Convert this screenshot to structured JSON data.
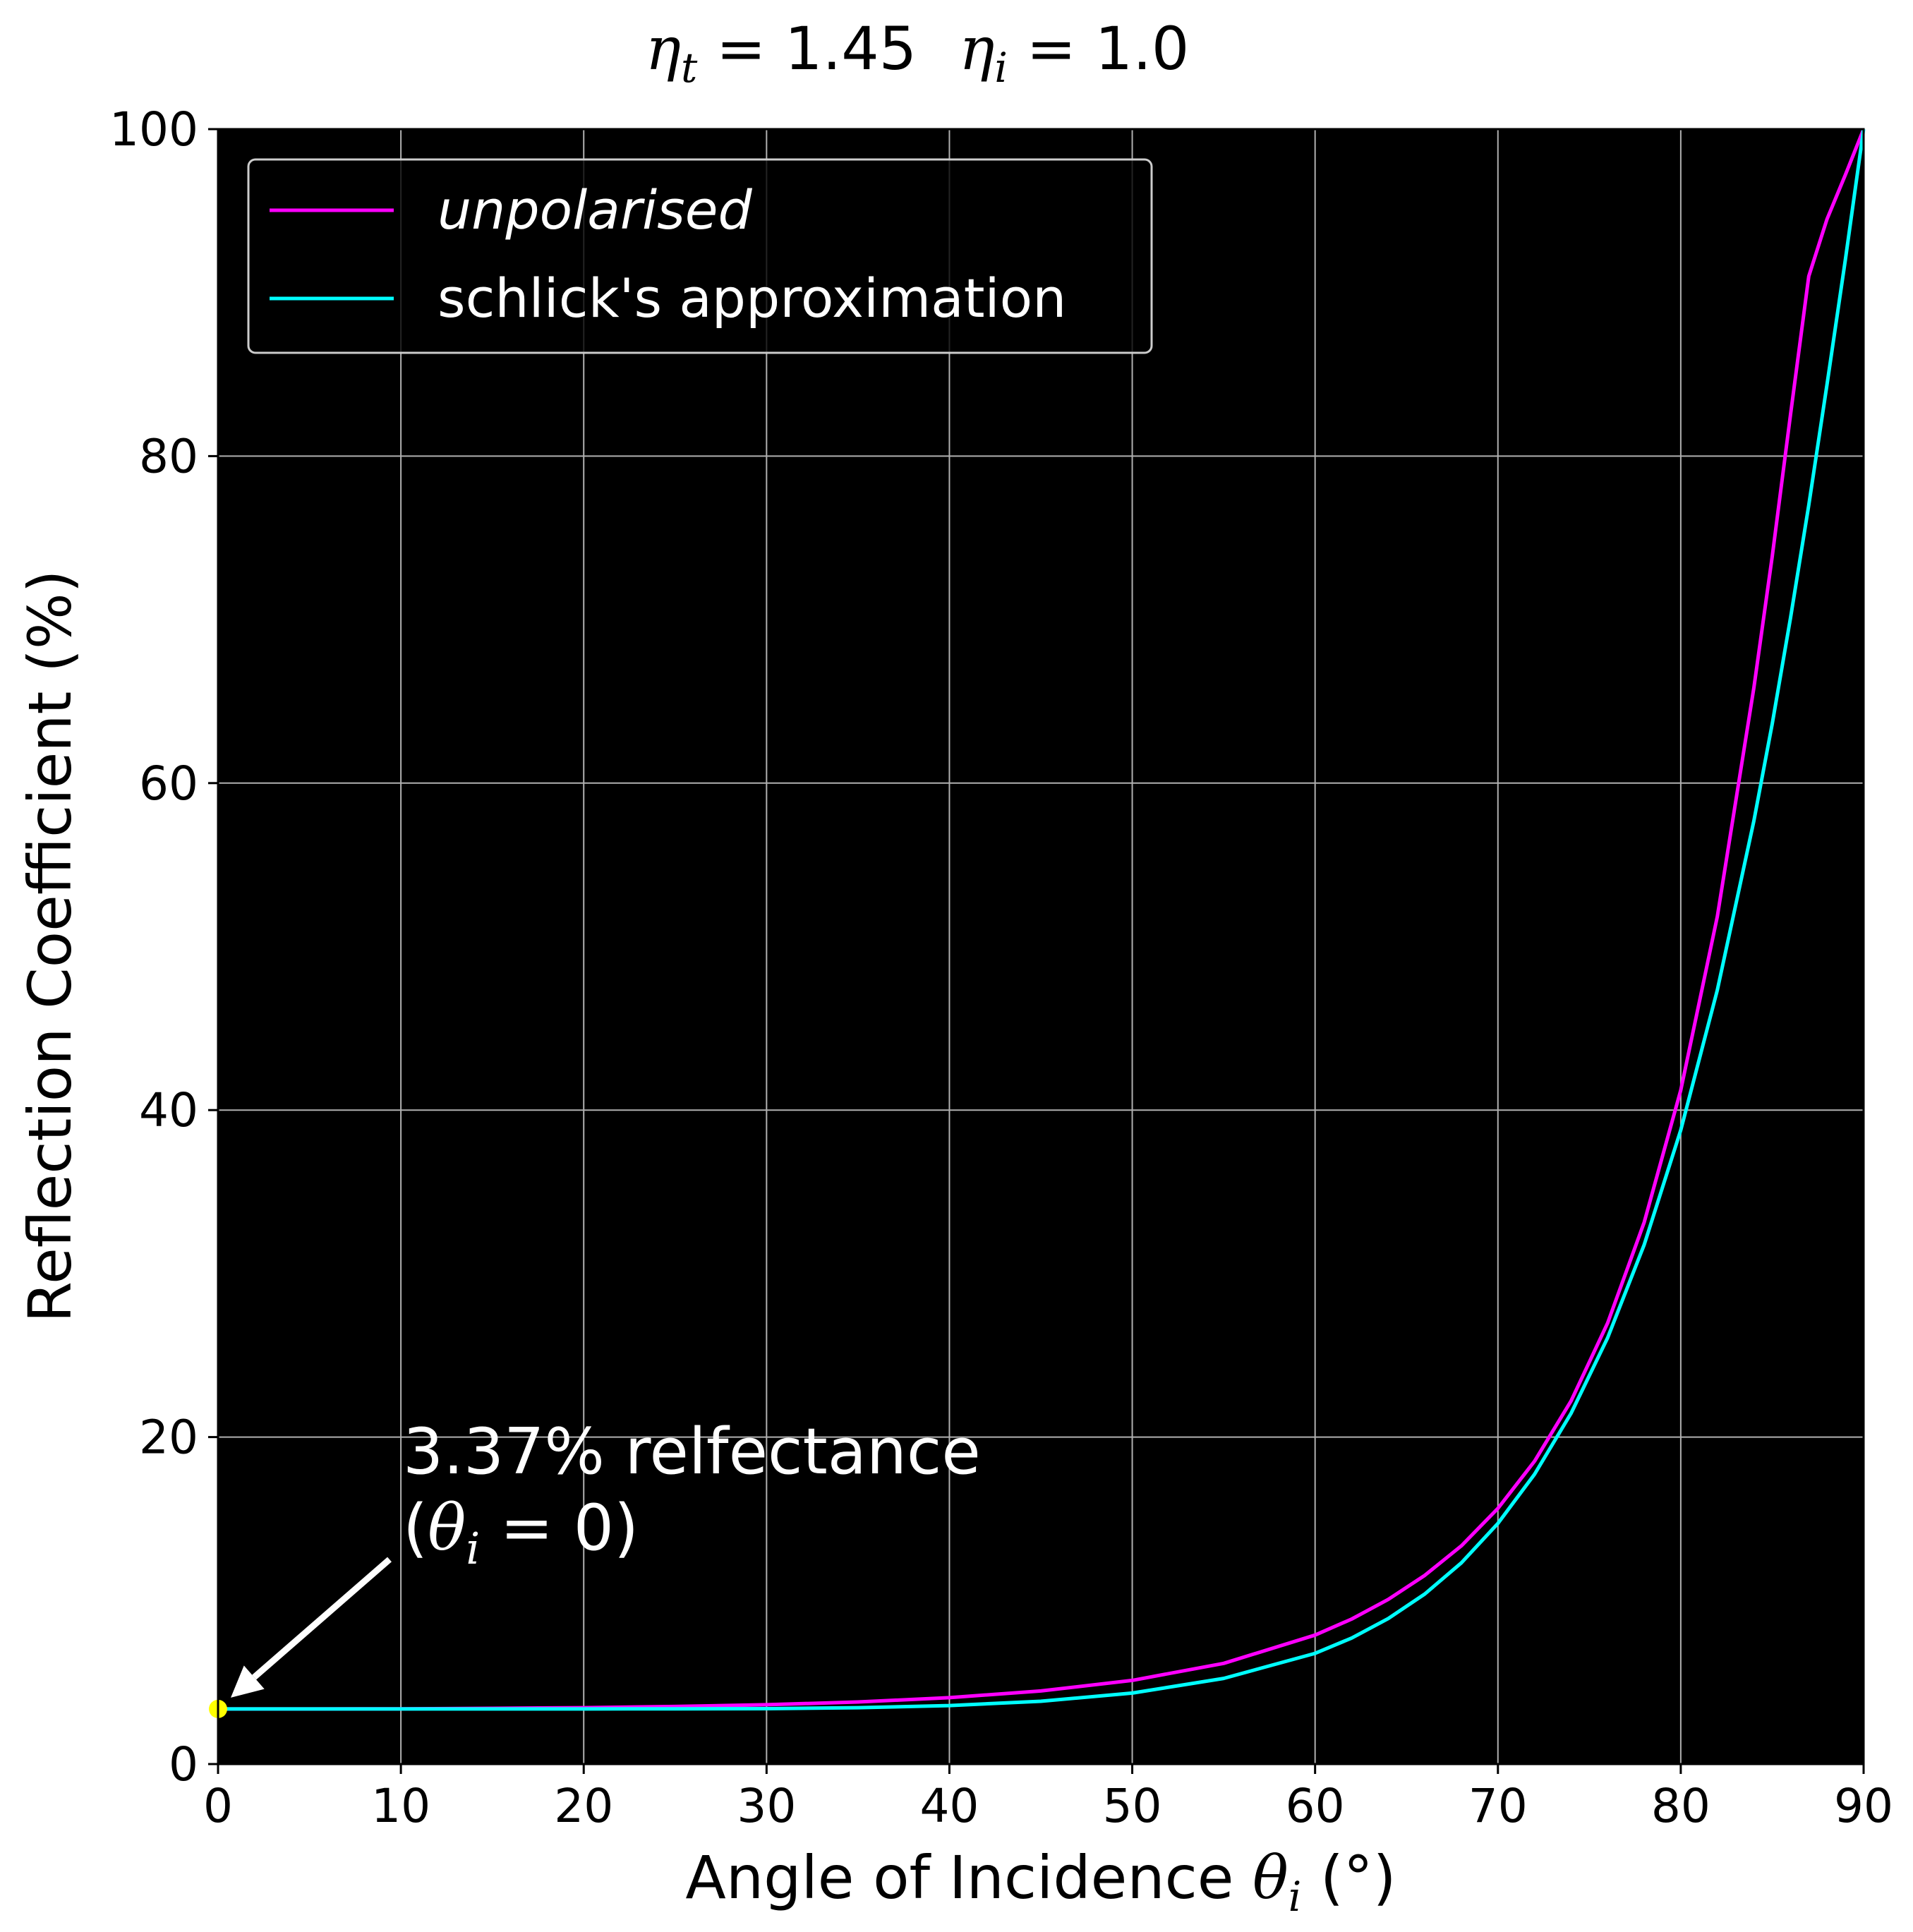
{
  "chart_data": {
    "type": "line",
    "title": {
      "eta_t_symbol": "η",
      "eta_t_sub": "t",
      "eta_t_value": " = 1.45",
      "eta_i_symbol": "η",
      "eta_i_sub": "i",
      "eta_i_value": " = 1.0"
    },
    "xlabel": {
      "text": "Angle of Incidence ",
      "symbol": "θ",
      "sub": "i",
      "unit": " (°)"
    },
    "ylabel": "Reflection Coefficient (%)",
    "xlim": [
      0,
      90
    ],
    "ylim": [
      0,
      100
    ],
    "xticks": [
      0,
      10,
      20,
      30,
      40,
      50,
      60,
      70,
      80,
      90
    ],
    "yticks": [
      0,
      20,
      40,
      60,
      80,
      100
    ],
    "grid": true,
    "legend_position": "top-left",
    "background": "#000000",
    "series": [
      {
        "name": "unpolarised",
        "color": "#ff00ff",
        "x": [
          0,
          5,
          10,
          15,
          20,
          25,
          30,
          35,
          40,
          45,
          50,
          55,
          60,
          62,
          64,
          66,
          68,
          70,
          72,
          74,
          76,
          78,
          80,
          82,
          84,
          85,
          86,
          87,
          88,
          89,
          90
        ],
        "y": [
          3.37,
          3.37,
          3.38,
          3.41,
          3.45,
          3.52,
          3.63,
          3.8,
          4.06,
          4.47,
          5.12,
          6.16,
          7.89,
          8.87,
          10.07,
          11.54,
          13.35,
          15.64,
          18.52,
          22.21,
          26.97,
          33.14,
          41.22,
          51.84,
          65.83,
          73.83,
          82.53,
          91.0,
          94.5,
          97.2,
          100
        ]
      },
      {
        "name": "schlick's approximation",
        "color": "#00ffff",
        "x": [
          0,
          5,
          10,
          15,
          20,
          25,
          30,
          35,
          40,
          45,
          50,
          55,
          60,
          62,
          64,
          66,
          68,
          70,
          72,
          74,
          76,
          78,
          80,
          82,
          84,
          85,
          86,
          87,
          88,
          89,
          90
        ],
        "y": [
          3.37,
          3.37,
          3.37,
          3.37,
          3.37,
          3.38,
          3.39,
          3.45,
          3.58,
          3.84,
          4.34,
          5.24,
          6.77,
          7.71,
          8.9,
          10.4,
          12.31,
          14.72,
          17.72,
          21.45,
          26.07,
          31.77,
          38.78,
          47.34,
          57.69,
          63.6,
          70.1,
          77.0,
          84.4,
          92.0,
          100
        ]
      }
    ],
    "point": {
      "x": 0,
      "y": 3.37,
      "color": "#ffff00"
    },
    "annotation": {
      "line1": "3.37% relfectance",
      "line2_open": "(",
      "line2_symbol": "θ",
      "line2_sub": "i",
      "line2_rest": " = 0)",
      "arrow_color": "#ffffff"
    }
  }
}
